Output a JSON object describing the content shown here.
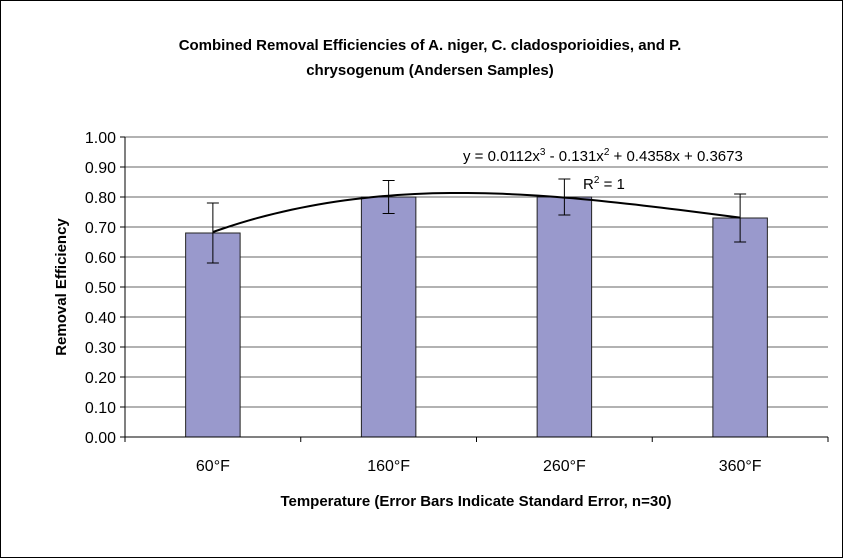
{
  "chart_data": {
    "type": "bar",
    "title": [
      "Combined Removal Efficiencies of A. niger, C. cladosporioidies, and P.",
      "chrysogenum (Andersen Samples)"
    ],
    "xlabel": "Temperature (Error Bars Indicate Standard Error, n=30)",
    "ylabel": "Removal Efficiency",
    "categories": [
      "60°F",
      "160°F",
      "260°F",
      "360°F"
    ],
    "values": [
      0.68,
      0.8,
      0.8,
      0.73
    ],
    "errors": [
      0.1,
      0.055,
      0.06,
      0.08
    ],
    "color": "#9999cc",
    "ylim": [
      0,
      1
    ],
    "yticks": [
      {
        "value": 0,
        "label": "0.00"
      },
      {
        "value": 0.1,
        "label": "0.10"
      },
      {
        "value": 0.2,
        "label": "0.20"
      },
      {
        "value": 0.3,
        "label": "0.30"
      },
      {
        "value": 0.4,
        "label": "0.40"
      },
      {
        "value": 0.5,
        "label": "0.50"
      },
      {
        "value": 0.6,
        "label": "0.60"
      },
      {
        "value": 0.7,
        "label": "0.70"
      },
      {
        "value": 0.8,
        "label": "0.80"
      },
      {
        "value": 0.9,
        "label": "0.90"
      },
      {
        "value": 1,
        "label": "1.00"
      }
    ],
    "grid": true,
    "trendline": {
      "coefficients": [
        0.0112,
        -0.131,
        0.4358,
        0.3673
      ],
      "equation": [
        "y = 0.0112x",
        "3",
        " - 0.131x",
        "2",
        " + 0.4358x + 0.3673"
      ],
      "r2": [
        "R",
        "2",
        " = 1"
      ]
    }
  }
}
